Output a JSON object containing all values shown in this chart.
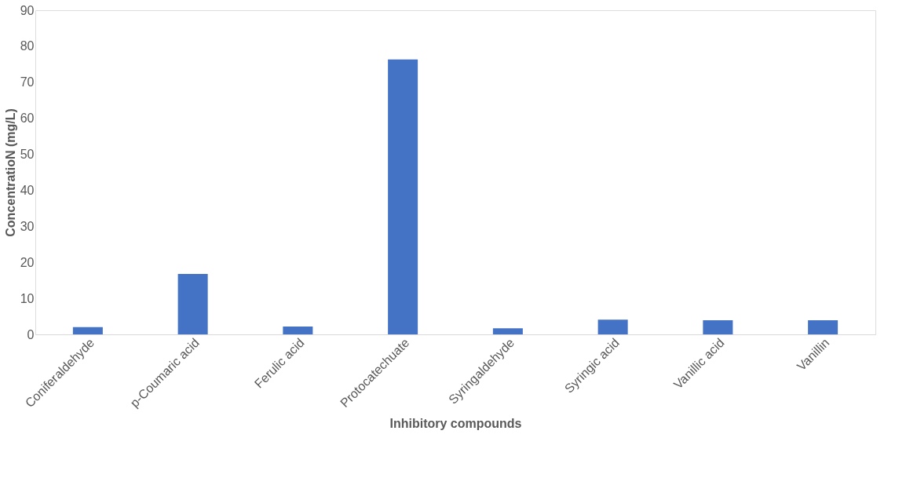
{
  "chart_data": {
    "type": "bar",
    "xlabel": "Inhibitory compounds",
    "ylabel": "ConcentratioN (mg/L)",
    "categories": [
      "Coniferaldehyde",
      "p-Coumaric acid",
      "Ferulic acid",
      "Protocatechuate",
      "Syringaldehyde",
      "Syringic acid",
      "Vanillic acid",
      "Vanillin"
    ],
    "values": [
      2.0,
      16.8,
      2.2,
      76.3,
      1.7,
      4.1,
      3.9,
      3.9
    ],
    "color": "#4472c4",
    "ylim": [
      0,
      90
    ],
    "yticks": [
      0,
      10,
      20,
      30,
      40,
      50,
      60,
      70,
      80,
      90
    ],
    "grid": false
  }
}
